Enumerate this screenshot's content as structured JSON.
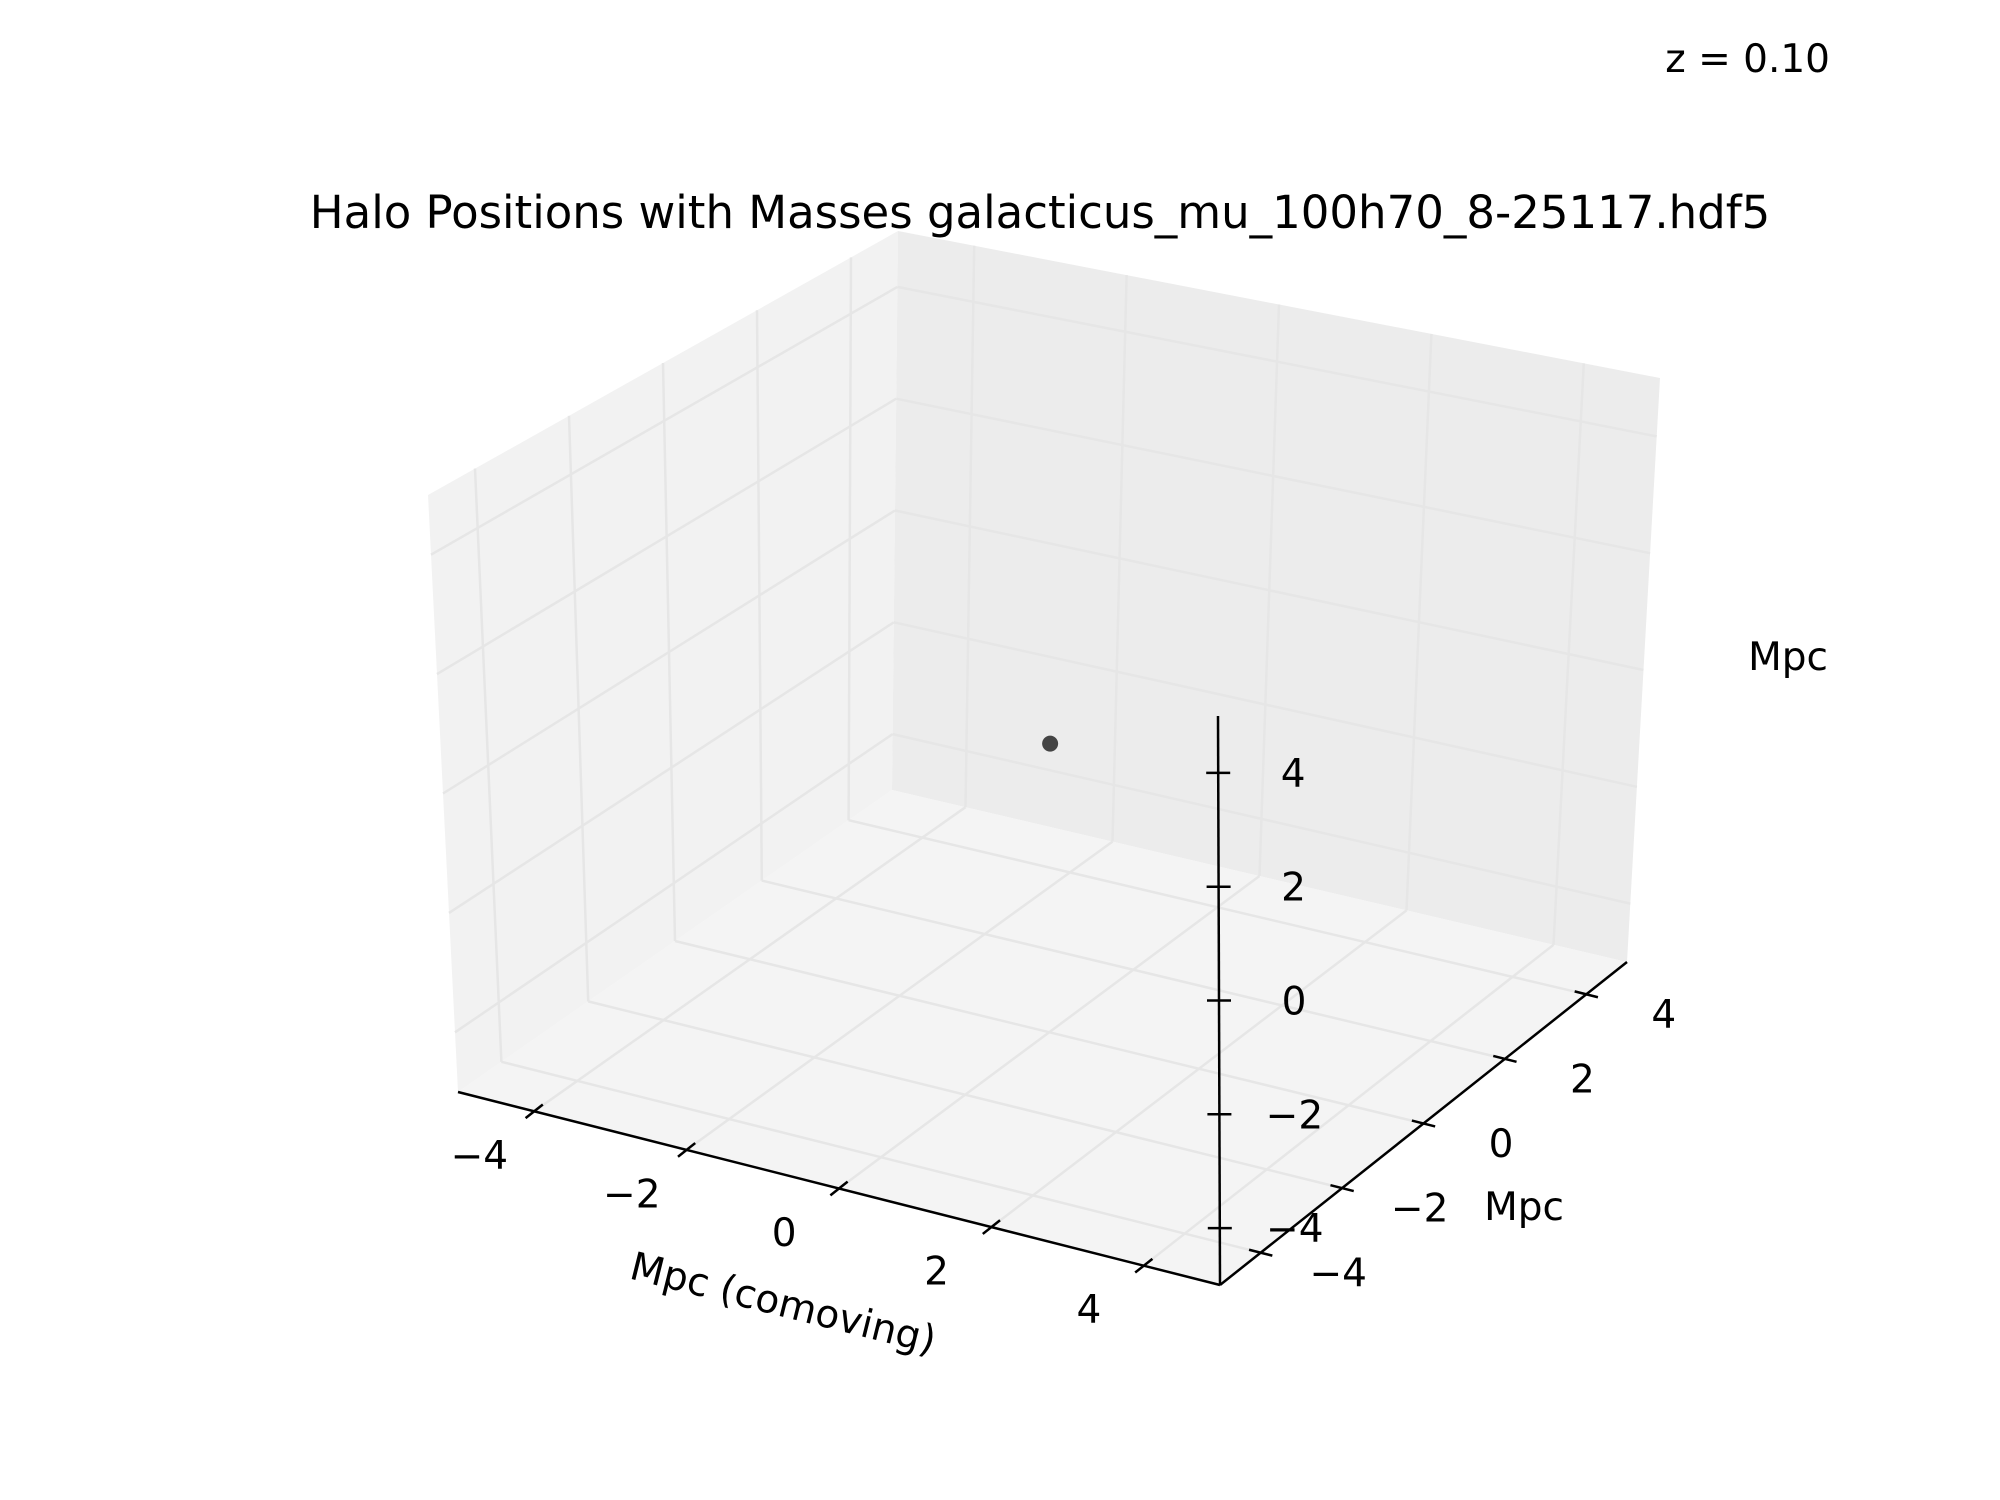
{
  "chart_data": {
    "type": "scatter",
    "projection": "3d",
    "title": "Halo Positions with Masses galacticus_mu_100h70_8-25117.hdf5",
    "annotation": "z = 0.10",
    "xlabel": "Mpc (comoving)",
    "ylabel": "Mpc",
    "zlabel": "Mpc",
    "xlim": [
      -5,
      5
    ],
    "ylim": [
      -5,
      5
    ],
    "zlim": [
      -5,
      5
    ],
    "xticks": [
      -4,
      -2,
      0,
      2,
      4
    ],
    "yticks": [
      -4,
      -2,
      0,
      2,
      4
    ],
    "zticks": [
      -4,
      -2,
      0,
      2,
      4
    ],
    "grid": true,
    "pane_colors": {
      "left": "#f2f2f2",
      "back": "#ececec",
      "floor": "#f4f4f4"
    },
    "point_color": "#444444",
    "points": [
      {
        "x": 0,
        "y": 0,
        "z": 0
      }
    ]
  }
}
